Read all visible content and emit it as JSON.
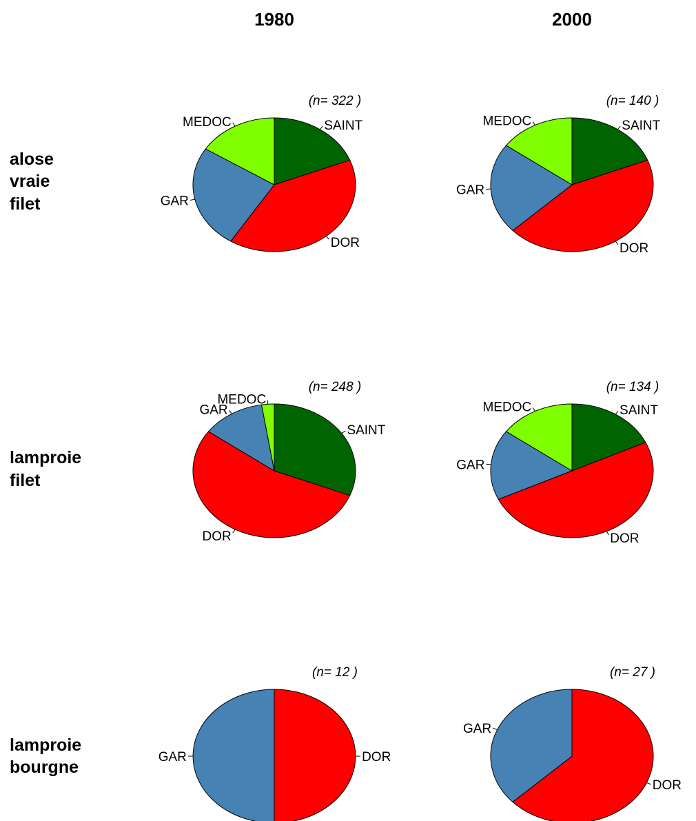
{
  "column_titles": [
    "1980",
    "2000"
  ],
  "row_titles": [
    [
      "alose",
      "vraie",
      "filet"
    ],
    [
      "lamproie",
      "filet"
    ],
    [
      "lamproie",
      "bourgne"
    ]
  ],
  "colors": {
    "SAINT": "#006400",
    "DOR": "#ff0000",
    "GAR": "#4682b4",
    "MEDOC": "#7fff00"
  },
  "chart_data": [
    {
      "type": "pie",
      "row": "alose vraie filet",
      "column": "1980",
      "n_label": "(n= 322 )",
      "slices": [
        {
          "label": "SAINT",
          "value": 0.19
        },
        {
          "label": "DOR",
          "value": 0.4
        },
        {
          "label": "GAR",
          "value": 0.25
        },
        {
          "label": "MEDOC",
          "value": 0.16
        }
      ]
    },
    {
      "type": "pie",
      "row": "alose vraie filet",
      "column": "2000",
      "n_label": "(n= 140 )",
      "slices": [
        {
          "label": "SAINT",
          "value": 0.19
        },
        {
          "label": "DOR",
          "value": 0.44
        },
        {
          "label": "GAR",
          "value": 0.22
        },
        {
          "label": "MEDOC",
          "value": 0.15
        }
      ]
    },
    {
      "type": "pie",
      "row": "lamproie filet",
      "column": "1980",
      "n_label": "(n= 248 )",
      "slices": [
        {
          "label": "SAINT",
          "value": 0.31
        },
        {
          "label": "DOR",
          "value": 0.54
        },
        {
          "label": "GAR",
          "value": 0.125
        },
        {
          "label": "MEDOC",
          "value": 0.025
        }
      ]
    },
    {
      "type": "pie",
      "row": "lamproie filet",
      "column": "2000",
      "n_label": "(n= 134 )",
      "slices": [
        {
          "label": "SAINT",
          "value": 0.18
        },
        {
          "label": "DOR",
          "value": 0.5
        },
        {
          "label": "GAR",
          "value": 0.17
        },
        {
          "label": "MEDOC",
          "value": 0.15
        }
      ]
    },
    {
      "type": "pie",
      "row": "lamproie bourgne",
      "column": "1980",
      "n_label": "(n= 12 )",
      "slices": [
        {
          "label": "DOR",
          "value": 0.5
        },
        {
          "label": "GAR",
          "value": 0.5
        }
      ]
    },
    {
      "type": "pie",
      "row": "lamproie bourgne",
      "column": "2000",
      "n_label": "(n= 27 )",
      "slices": [
        {
          "label": "DOR",
          "value": 0.63
        },
        {
          "label": "GAR",
          "value": 0.37
        }
      ]
    }
  ]
}
